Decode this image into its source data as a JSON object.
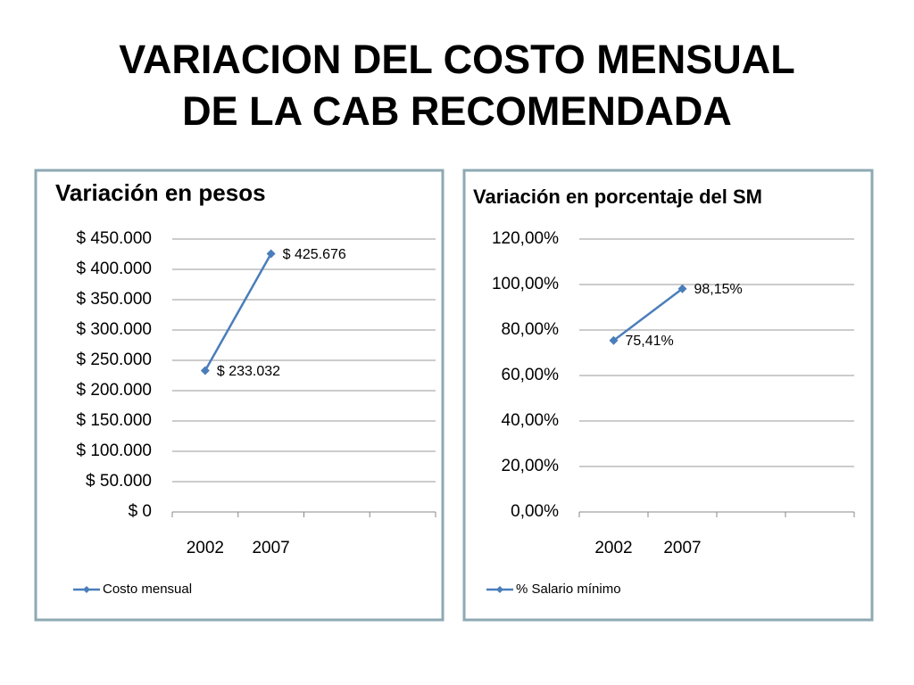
{
  "slide": {
    "title_lines": [
      "VARIACION DEL COSTO MENSUAL",
      "DE LA CAB RECOMENDADA"
    ]
  },
  "chart_data": [
    {
      "type": "line",
      "title": "Variación en pesos",
      "categories": [
        "2002",
        "2007",
        null,
        null
      ],
      "series": [
        {
          "name": "Costo mensual",
          "color": "#4a7ebb",
          "values": [
            233032,
            425676,
            null,
            null
          ],
          "value_labels": [
            "$ 233.032",
            "$ 425.676",
            null,
            null
          ]
        }
      ],
      "ylim": [
        0,
        450000
      ],
      "yticks": [
        {
          "value": 0,
          "label": "$ 0"
        },
        {
          "value": 50000,
          "label": "$ 50.000"
        },
        {
          "value": 100000,
          "label": "$ 100.000"
        },
        {
          "value": 150000,
          "label": "$ 150.000"
        },
        {
          "value": 200000,
          "label": "$ 200.000"
        },
        {
          "value": 250000,
          "label": "$ 250.000"
        },
        {
          "value": 300000,
          "label": "$ 300.000"
        },
        {
          "value": 350000,
          "label": "$ 350.000"
        },
        {
          "value": 400000,
          "label": "$ 400.000"
        },
        {
          "value": 450000,
          "label": "$ 450.000"
        }
      ],
      "grid": true,
      "legend": "bottom"
    },
    {
      "type": "line",
      "title": "Variación en porcentaje del SM",
      "categories": [
        "2002",
        "2007",
        null,
        null
      ],
      "series": [
        {
          "name": "% Salario mínimo",
          "color": "#4a7ebb",
          "values": [
            75.41,
            98.15,
            null,
            null
          ],
          "value_labels": [
            "75,41%",
            "98,15%",
            null,
            null
          ]
        }
      ],
      "ylim": [
        0,
        120
      ],
      "yticks": [
        {
          "value": 0,
          "label": "0,00%"
        },
        {
          "value": 20,
          "label": "20,00%"
        },
        {
          "value": 40,
          "label": "40,00%"
        },
        {
          "value": 60,
          "label": "60,00%"
        },
        {
          "value": 80,
          "label": "80,00%"
        },
        {
          "value": 100,
          "label": "100,00%"
        },
        {
          "value": 120,
          "label": "120,00%"
        }
      ],
      "grid": true,
      "legend": "bottom"
    }
  ]
}
